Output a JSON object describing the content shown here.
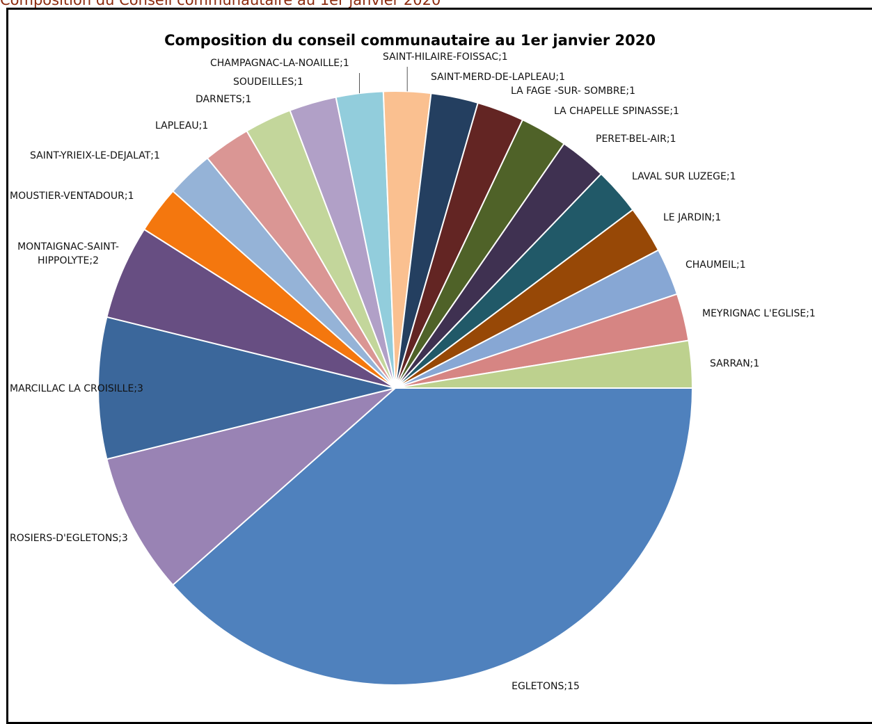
{
  "page": {
    "heading": "Composition du Conseil communautaire au 1er janvier 2020"
  },
  "chart_data": {
    "type": "pie",
    "title": "Composition du conseil communautaire au 1er janvier 2020",
    "legend": "none",
    "data_labels": "category;value",
    "start_angle_deg": 90,
    "direction": "clockwise",
    "slices": [
      {
        "label": "EGLETONS",
        "value": 15,
        "color": "#4f81bd"
      },
      {
        "label": "ROSIERS-D'EGLETONS",
        "value": 3,
        "color": "#9983b4"
      },
      {
        "label": "MARCILLAC LA CROISILLE",
        "value": 3,
        "color": "#3b679b"
      },
      {
        "label": "MONTAIGNAC-SAINT-HIPPOLYTE",
        "value": 2,
        "color": "#674e82"
      },
      {
        "label": "MOUSTIER-VENTADOUR",
        "value": 1,
        "color": "#f4770e"
      },
      {
        "label": "SAINT-YRIEIX-LE-DEJALAT",
        "value": 1,
        "color": "#95b3d7"
      },
      {
        "label": "LAPLEAU",
        "value": 1,
        "color": "#da9694"
      },
      {
        "label": "DARNETS",
        "value": 1,
        "color": "#c3d69b"
      },
      {
        "label": "SOUDEILLES",
        "value": 1,
        "color": "#b1a0c7"
      },
      {
        "label": "CHAMPAGNAC-LA-NOAILLE",
        "value": 1,
        "color": "#92cddc"
      },
      {
        "label": "SAINT-HILAIRE-FOISSAC",
        "value": 1,
        "color": "#fac090"
      },
      {
        "label": "SAINT-MERD-DE-LAPLEAU",
        "value": 1,
        "color": "#243f60"
      },
      {
        "label": "LA FAGE -SUR- SOMBRE",
        "value": 1,
        "color": "#632523"
      },
      {
        "label": "LA CHAPELLE SPINASSE",
        "value": 1,
        "color": "#4f6228"
      },
      {
        "label": "PERET-BEL-AIR",
        "value": 1,
        "color": "#3f3151"
      },
      {
        "label": "LAVAL SUR LUZEGE",
        "value": 1,
        "color": "#215968"
      },
      {
        "label": "LE JARDIN",
        "value": 1,
        "color": "#974806"
      },
      {
        "label": "CHAUMEIL",
        "value": 1,
        "color": "#87a7d4"
      },
      {
        "label": "MEYRIGNAC L'EGLISE",
        "value": 1,
        "color": "#d68583"
      },
      {
        "label": "SARRAN",
        "value": 1,
        "color": "#bdd18e"
      }
    ]
  }
}
